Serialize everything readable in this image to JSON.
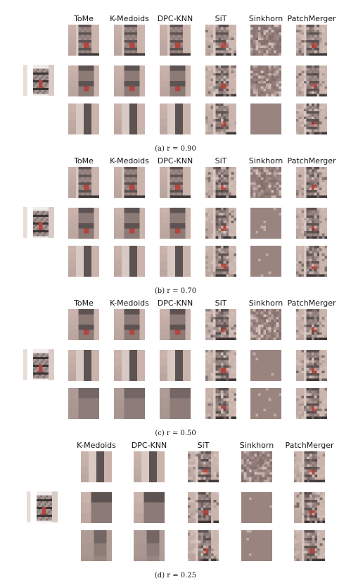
{
  "panels": [
    {
      "caption": "(a) r = 0.90",
      "methods": [
        "ToMe",
        "K-Medoids",
        "DPC-KNN",
        "SiT",
        "Sinkhorn",
        "PatchMerger"
      ]
    },
    {
      "caption": "(b) r = 0.70",
      "methods": [
        "ToMe",
        "K-Medoids",
        "DPC-KNN",
        "SiT",
        "Sinkhorn",
        "PatchMerger"
      ]
    },
    {
      "caption": "(c) r = 0.50",
      "methods": [
        "ToMe",
        "K-Medoids",
        "DPC-KNN",
        "SiT",
        "Sinkhorn",
        "PatchMerger"
      ]
    },
    {
      "caption": "(d) r = 0.25",
      "methods": [
        "K-Medoids",
        "DPC-KNN",
        "SiT",
        "Sinkhorn",
        "PatchMerger"
      ]
    }
  ],
  "colors": {
    "wall": "#c9b3ab",
    "cabinet_light": "#d8c9c3",
    "shelf_dark": "#5d5352",
    "accent_red": "#b0463f",
    "floor_dark": "#3f3838",
    "sinkhorn_flat": "#9a8480"
  }
}
